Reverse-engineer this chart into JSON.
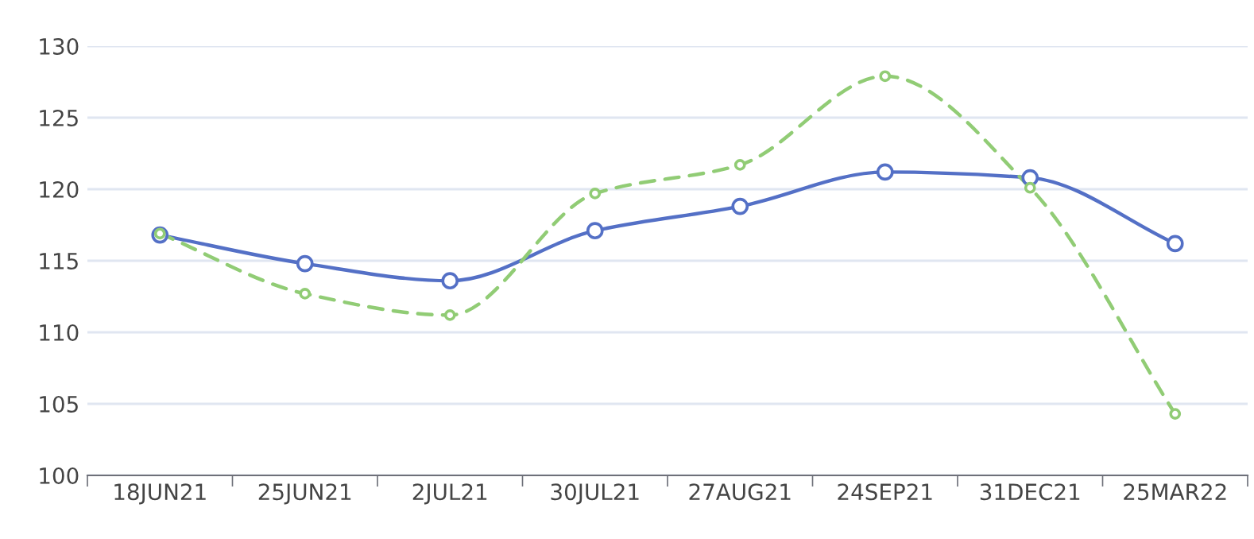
{
  "chart_data": {
    "type": "line",
    "categories": [
      "18JUN21",
      "25JUN21",
      "2JUL21",
      "30JUL21",
      "27AUG21",
      "24SEP21",
      "31DEC21",
      "25MAR22"
    ],
    "series": [
      {
        "color": "#5470c6",
        "values": [
          116.8,
          114.8,
          113.6,
          117.1,
          118.8,
          121.2,
          120.8,
          116.2
        ],
        "line_style": "solid"
      },
      {
        "color": "#91cc75",
        "values": [
          116.9,
          112.7,
          111.2,
          119.7,
          121.7,
          127.9,
          120.1,
          104.3
        ],
        "line_style": "dashed"
      }
    ],
    "ylim": [
      100,
      130
    ],
    "yticks": [
      100,
      105,
      110,
      115,
      120,
      125,
      130
    ],
    "grid": "y",
    "marker": "circle",
    "legend": false
  }
}
